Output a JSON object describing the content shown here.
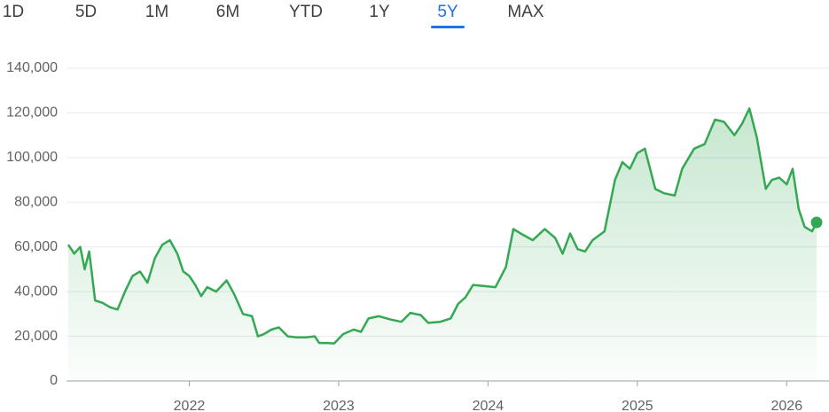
{
  "tabs": [
    "1D",
    "5D",
    "1M",
    "6M",
    "YTD",
    "1Y",
    "5Y",
    "MAX"
  ],
  "selected_tab": 6,
  "chart_data": {
    "type": "line",
    "color": "#34a853",
    "grid": true,
    "x": [
      2021.19,
      2021.23,
      2021.27,
      2021.3,
      2021.33,
      2021.37,
      2021.42,
      2021.47,
      2021.52,
      2021.57,
      2021.62,
      2021.67,
      2021.72,
      2021.77,
      2021.82,
      2021.87,
      2021.92,
      2021.96,
      2022.0,
      2022.04,
      2022.08,
      2022.12,
      2022.18,
      2022.25,
      2022.3,
      2022.36,
      2022.42,
      2022.46,
      2022.5,
      2022.55,
      2022.6,
      2022.66,
      2022.72,
      2022.78,
      2022.84,
      2022.87,
      2022.92,
      2022.97,
      2023.03,
      2023.1,
      2023.15,
      2023.2,
      2023.27,
      2023.35,
      2023.42,
      2023.48,
      2023.55,
      2023.6,
      2023.68,
      2023.75,
      2023.8,
      2023.85,
      2023.9,
      2023.97,
      2024.05,
      2024.12,
      2024.17,
      2024.22,
      2024.3,
      2024.38,
      2024.45,
      2024.5,
      2024.55,
      2024.6,
      2024.65,
      2024.7,
      2024.78,
      2024.85,
      2024.9,
      2024.95,
      2025.0,
      2025.05,
      2025.12,
      2025.18,
      2025.25,
      2025.3,
      2025.38,
      2025.45,
      2025.52,
      2025.58,
      2025.65,
      2025.7,
      2025.75,
      2025.8,
      2025.86,
      2025.9,
      2025.95,
      2026.0,
      2026.04,
      2026.08,
      2026.12,
      2026.17,
      2026.2
    ],
    "values": [
      61000,
      57000,
      60000,
      50000,
      58000,
      36000,
      35000,
      33000,
      32000,
      40000,
      47000,
      49000,
      44000,
      55000,
      61000,
      63000,
      57000,
      49000,
      47000,
      43000,
      38000,
      42000,
      40000,
      45000,
      39000,
      30000,
      29000,
      20000,
      21000,
      23000,
      24000,
      20000,
      19500,
      19500,
      20000,
      17000,
      17000,
      16800,
      21000,
      23000,
      22000,
      28000,
      29000,
      27500,
      26500,
      30500,
      29500,
      26000,
      26500,
      28000,
      34500,
      37500,
      43000,
      42500,
      42000,
      51000,
      68000,
      66000,
      63000,
      68000,
      64000,
      57000,
      66000,
      59000,
      58000,
      63000,
      67000,
      90000,
      98000,
      95000,
      102000,
      104000,
      86000,
      84000,
      83000,
      95000,
      104000,
      106000,
      117000,
      116000,
      110000,
      115000,
      122000,
      109000,
      86000,
      90000,
      91000,
      88000,
      95000,
      77000,
      69000,
      67000,
      71000
    ],
    "xlim": [
      2021.19,
      2026.2
    ],
    "xticks": [
      2022,
      2023,
      2024,
      2025,
      2026
    ],
    "ylim": [
      0,
      140000
    ],
    "yticks": [
      0,
      {
        "value": 20000,
        "label": "20,000"
      },
      {
        "value": 40000,
        "label": "40,000"
      },
      {
        "value": 60000,
        "label": "60,000"
      },
      {
        "value": 80000,
        "label": "80,000"
      },
      {
        "value": 100000,
        "label": "100,000"
      },
      {
        "value": 120000,
        "label": "120,000"
      },
      {
        "value": 140000,
        "label": "140,000"
      }
    ]
  }
}
